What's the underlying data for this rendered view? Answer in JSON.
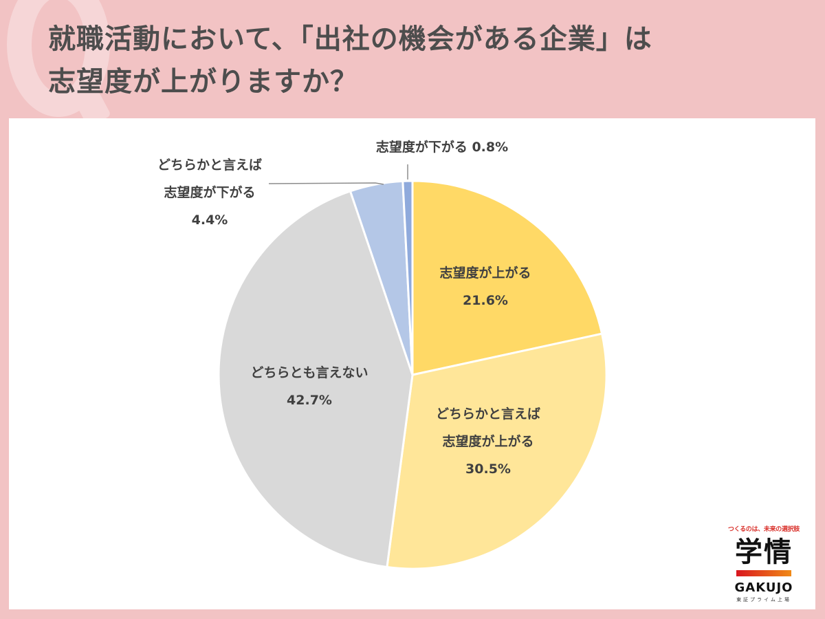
{
  "title": {
    "line1": "就職活動において、「出社の機会がある企業」は",
    "line2": "志望度が上がりますか？"
  },
  "decor": {
    "q_glyph": "Q"
  },
  "logo": {
    "tagline": "つくるのは、未来の選択肢",
    "name_jp": "学情",
    "name_en": "GAKUJO",
    "subtitle": "東証プライム上場",
    "bar_gradient": [
      "#d9161f",
      "#f08a17"
    ]
  },
  "colors": {
    "background": "#f2c3c4",
    "panel": "#ffffff",
    "title_text": "#4d4d4d",
    "label_text": "#404040"
  },
  "chart_data": {
    "type": "pie",
    "title": "就職活動において、「出社の機会がある企業」は志望度が上がりますか？",
    "start_angle_deg": 0,
    "direction": "clockwise",
    "categories": [
      "志望度が上がる",
      "どちらかと言えば志望度が上がる",
      "どちらとも言えない",
      "どちらかと言えば志望度が下がる",
      "志望度が下がる"
    ],
    "values": [
      21.6,
      30.5,
      42.7,
      4.4,
      0.8
    ],
    "unit": "%",
    "colors": [
      "#ffd966",
      "#ffe699",
      "#d9d9d9",
      "#b4c7e7",
      "#8faadc"
    ],
    "labels": [
      {
        "lines": [
          "志望度が上がる",
          "21.6%"
        ]
      },
      {
        "lines": [
          "どちらかと言えば",
          "志望度が上がる",
          "30.5%"
        ]
      },
      {
        "lines": [
          "どちらとも言えない",
          "42.7%"
        ]
      },
      {
        "lines": [
          "どちらかと言えば",
          "志望度が下がる",
          "4.4%"
        ]
      },
      {
        "lines": [
          "志望度が下がる 0.8%"
        ]
      }
    ],
    "legend": "none (data labels on slices)"
  }
}
